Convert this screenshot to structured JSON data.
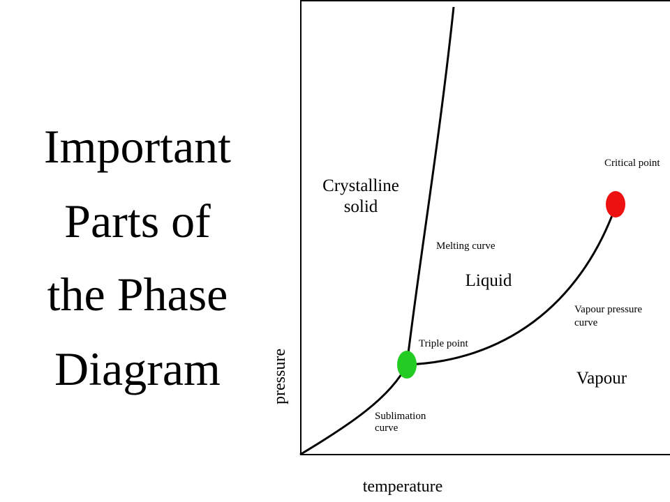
{
  "slide": {
    "title": [
      "Important",
      "Parts of",
      "the Phase",
      "Diagram"
    ]
  },
  "diagram": {
    "axes": {
      "x_label": "temperature",
      "y_label": "pressure"
    },
    "regions": [
      {
        "label": [
          "Crystalline",
          "solid"
        ]
      },
      {
        "label": [
          "Liquid"
        ]
      },
      {
        "label": [
          "Vapour"
        ]
      }
    ],
    "curves": [
      {
        "label": [
          "Melting curve"
        ]
      },
      {
        "label": [
          "Vapour pressure",
          "curve"
        ]
      },
      {
        "label": [
          "Sublimation",
          "curve"
        ]
      }
    ],
    "points": [
      {
        "label": [
          "Triple point"
        ]
      },
      {
        "label": [
          "Critical point"
        ]
      }
    ]
  }
}
